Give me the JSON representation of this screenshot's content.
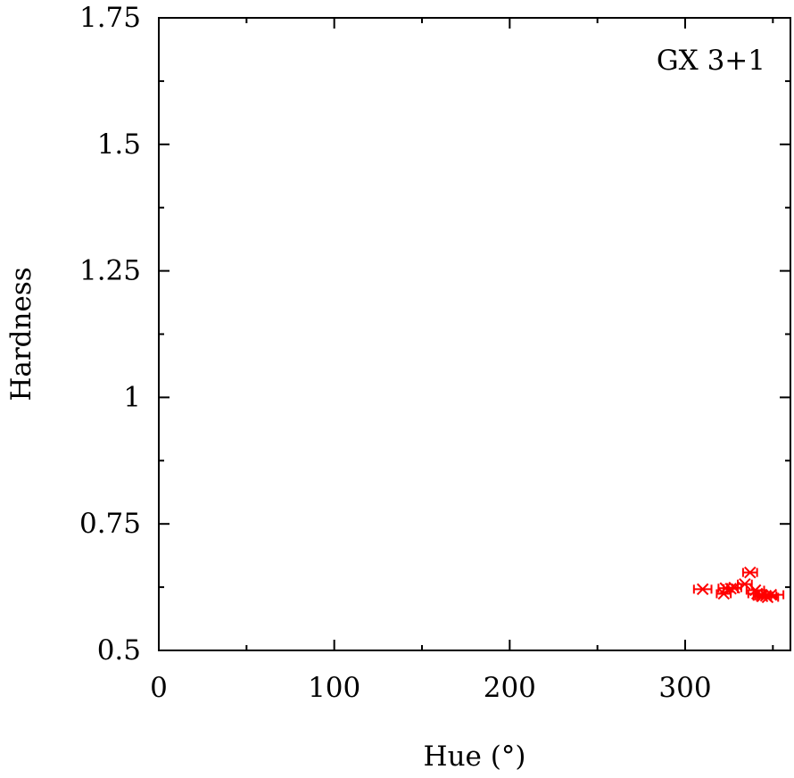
{
  "chart_data": {
    "type": "scatter",
    "annotation": "GX 3+1",
    "xlabel": "Hue (°)",
    "ylabel": "Hardness",
    "xlim": [
      0,
      360
    ],
    "ylim": [
      0.5,
      1.75
    ],
    "xticks": [
      0,
      100,
      200,
      300
    ],
    "xtick_labels": [
      "0",
      "100",
      "200",
      "300"
    ],
    "xminor": [
      50,
      150,
      250,
      350
    ],
    "yticks": [
      0.5,
      0.75,
      1,
      1.25,
      1.5,
      1.75
    ],
    "ytick_labels": [
      "0.5",
      "0.75",
      "1",
      "1.25",
      "1.5",
      "1.75"
    ],
    "yminor": [
      0.625,
      0.875,
      1.125,
      1.375,
      1.625
    ],
    "grid": false,
    "series": [
      {
        "marker": "x-cross",
        "color": "#ff0000",
        "points": [
          {
            "x": 310,
            "y": 0.621,
            "xerr": 5
          },
          {
            "x": 322,
            "y": 0.612,
            "xerr": 4
          },
          {
            "x": 323,
            "y": 0.623,
            "xerr": 4
          },
          {
            "x": 326,
            "y": 0.622,
            "xerr": 4
          },
          {
            "x": 328,
            "y": 0.624,
            "xerr": 4
          },
          {
            "x": 334,
            "y": 0.631,
            "xerr": 4
          },
          {
            "x": 337,
            "y": 0.654,
            "xerr": 4
          },
          {
            "x": 340,
            "y": 0.619,
            "xerr": 5
          },
          {
            "x": 341,
            "y": 0.612,
            "xerr": 5
          },
          {
            "x": 344,
            "y": 0.607,
            "xerr": 5
          },
          {
            "x": 346,
            "y": 0.608,
            "xerr": 6
          },
          {
            "x": 347,
            "y": 0.605,
            "xerr": 6
          },
          {
            "x": 349,
            "y": 0.61,
            "xerr": 7
          }
        ]
      }
    ]
  }
}
